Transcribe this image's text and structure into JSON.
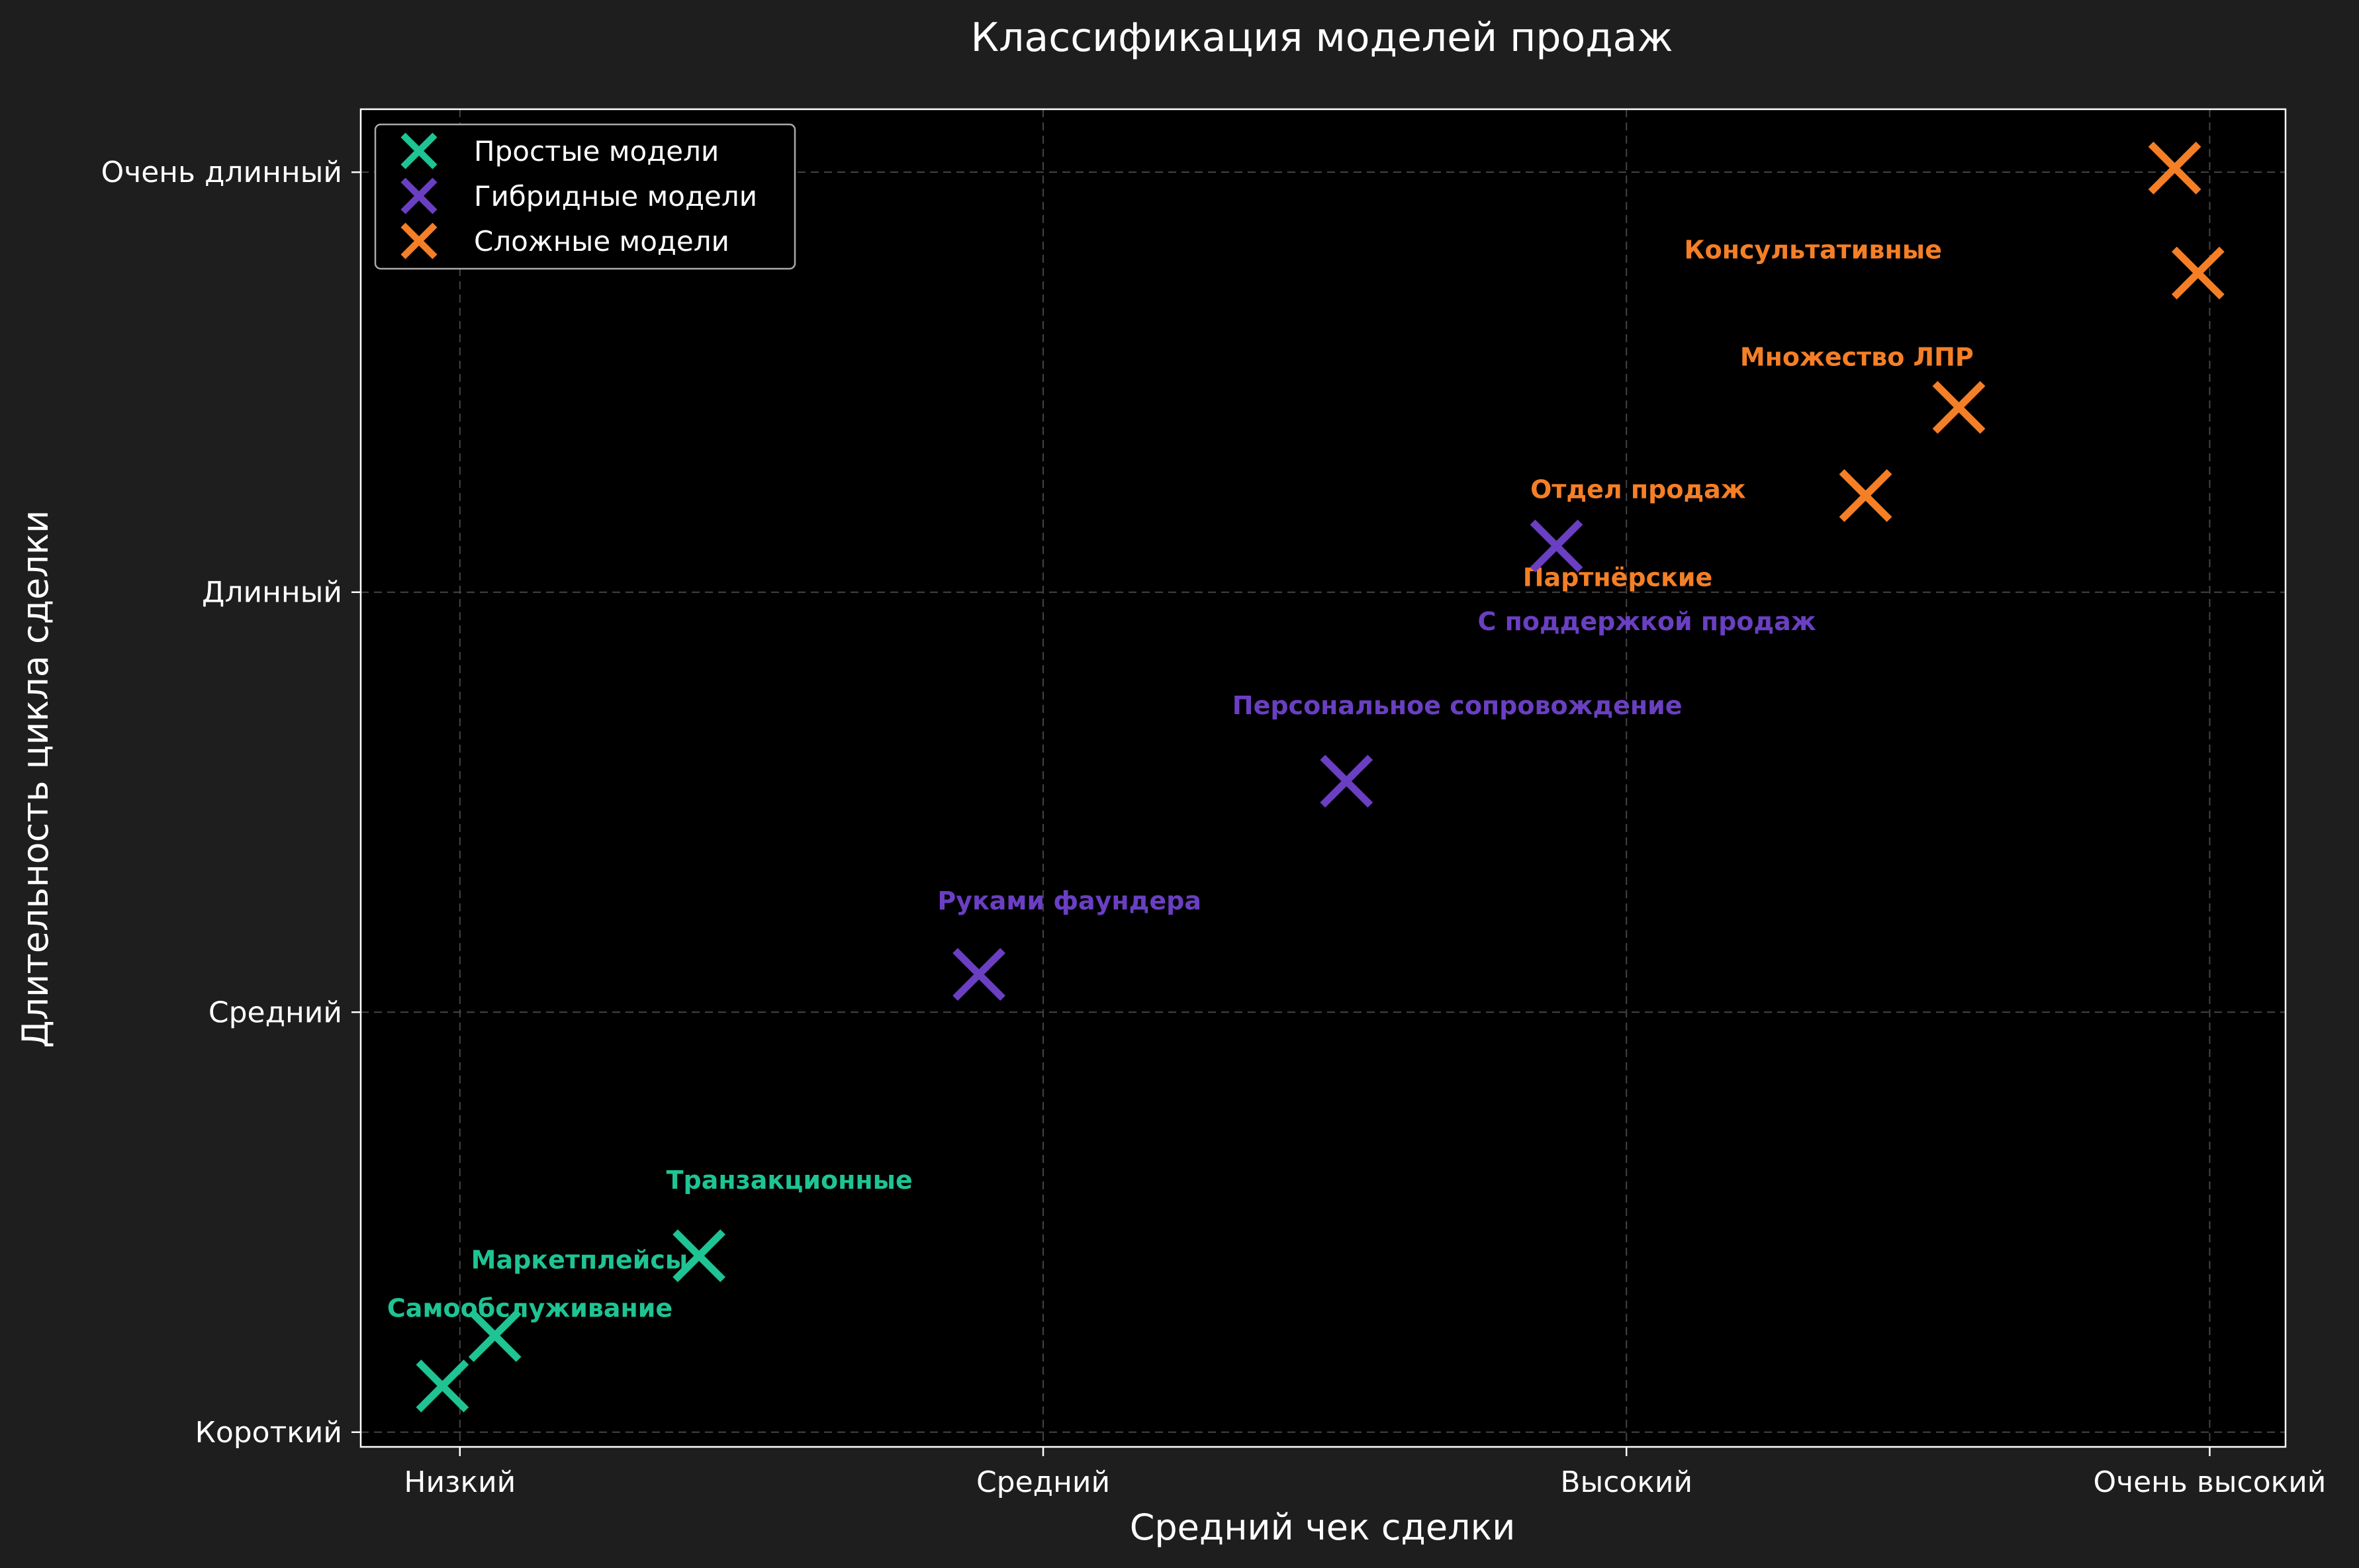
{
  "chart_data": {
    "type": "scatter",
    "title": "Классификация моделей продаж",
    "xlabel": "Средний чек сделки",
    "ylabel": "Длительность цикла сделки",
    "x_ticks": [
      {
        "value": 1,
        "label": "Низкий"
      },
      {
        "value": 2,
        "label": "Средний"
      },
      {
        "value": 3,
        "label": "Высокий"
      },
      {
        "value": 4,
        "label": "Очень высокий"
      }
    ],
    "y_ticks": [
      {
        "value": 1,
        "label": "Короткий"
      },
      {
        "value": 2,
        "label": "Средний"
      },
      {
        "value": 3,
        "label": "Длинный"
      },
      {
        "value": 4,
        "label": "Очень длинный"
      }
    ],
    "xlim": [
      0.83,
      4.13
    ],
    "ylim": [
      0.965,
      4.15
    ],
    "grid": true,
    "legend_position": "top-left",
    "series": [
      {
        "name": "Простые модели",
        "color": "#1ec493",
        "points": [
          {
            "x": 0.97,
            "y": 1.11
          },
          {
            "x": 1.06,
            "y": 1.23
          },
          {
            "x": 1.41,
            "y": 1.42
          }
        ]
      },
      {
        "name": "Гибридные модели",
        "color": "#6a3fc2",
        "points": [
          {
            "x": 1.89,
            "y": 2.09
          },
          {
            "x": 2.52,
            "y": 2.55
          },
          {
            "x": 2.88,
            "y": 3.11
          }
        ]
      },
      {
        "name": "Сложные модели",
        "color": "#f57f26",
        "points": [
          {
            "x": 3.41,
            "y": 3.23
          },
          {
            "x": 3.57,
            "y": 3.44
          },
          {
            "x": 3.94,
            "y": 4.01
          },
          {
            "x": 3.98,
            "y": 3.76
          }
        ]
      }
    ],
    "annotations": [
      {
        "text": "Самообслуживание",
        "x": 1.12,
        "y": 1.295,
        "color": "#1ec493"
      },
      {
        "text": "Маркетплейсы",
        "x": 1.205,
        "y": 1.41,
        "color": "#1ec493"
      },
      {
        "text": "Транзакционные",
        "x": 1.565,
        "y": 1.6,
        "color": "#1ec493"
      },
      {
        "text": "Руками фаундера",
        "x": 2.045,
        "y": 2.265,
        "color": "#6a3fc2"
      },
      {
        "text": "Персональное сопровождение",
        "x": 2.71,
        "y": 2.73,
        "color": "#6a3fc2"
      },
      {
        "text": "С поддержкой продаж",
        "x": 3.035,
        "y": 2.93,
        "color": "#6a3fc2"
      },
      {
        "text": "Партнёрские",
        "x": 2.985,
        "y": 3.035,
        "color": "#f57f26"
      },
      {
        "text": "Отдел продаж",
        "x": 3.02,
        "y": 3.245,
        "color": "#f57f26"
      },
      {
        "text": "Множество ЛПР",
        "x": 3.395,
        "y": 3.56,
        "color": "#f57f26"
      },
      {
        "text": "Консультативные",
        "x": 3.32,
        "y": 3.815,
        "color": "#f57f26"
      }
    ]
  }
}
